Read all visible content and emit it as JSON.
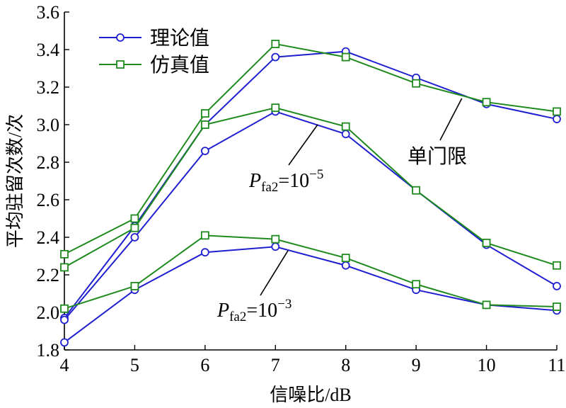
{
  "chart_data": {
    "type": "line",
    "xlabel": "信噪比/dB",
    "ylabel": "平均驻留次数/次",
    "xlim": [
      4,
      11
    ],
    "ylim": [
      1.8,
      3.6
    ],
    "x_ticks": [
      "4",
      "5",
      "6",
      "7",
      "8",
      "9",
      "10",
      "11"
    ],
    "y_ticks": [
      "1.8",
      "2.0",
      "2.2",
      "2.4",
      "2.6",
      "2.8",
      "3.0",
      "3.2",
      "3.4",
      "3.6"
    ],
    "x": [
      4,
      5,
      6,
      7,
      8,
      9,
      10,
      11
    ],
    "grid": false,
    "legend_position": "top-left",
    "legend": [
      {
        "label": "理论值",
        "color": "#1f1fd0",
        "marker": "circle"
      },
      {
        "label": "仿真值",
        "color": "#1e8a1e",
        "marker": "square"
      }
    ],
    "series": [
      {
        "group": "单门限",
        "kind": "理论值",
        "color": "#1f1fd0",
        "marker": "circle",
        "values": [
          1.97,
          2.46,
          3.0,
          3.36,
          3.39,
          3.25,
          3.11,
          3.03
        ]
      },
      {
        "group": "单门限",
        "kind": "仿真值",
        "color": "#1e8a1e",
        "marker": "square",
        "values": [
          2.31,
          2.5,
          3.06,
          3.43,
          3.36,
          3.22,
          3.12,
          3.07
        ]
      },
      {
        "group": "Pfa2=10^-5",
        "kind": "理论值",
        "color": "#1f1fd0",
        "marker": "circle",
        "values": [
          1.96,
          2.4,
          2.86,
          3.07,
          2.95,
          2.65,
          2.36,
          2.14
        ]
      },
      {
        "group": "Pfa2=10^-5",
        "kind": "仿真值",
        "color": "#1e8a1e",
        "marker": "square",
        "values": [
          2.24,
          2.45,
          3.0,
          3.09,
          2.99,
          2.65,
          2.37,
          2.25
        ]
      },
      {
        "group": "Pfa2=10^-3",
        "kind": "理论值",
        "color": "#1f1fd0",
        "marker": "circle",
        "values": [
          1.84,
          2.12,
          2.32,
          2.35,
          2.25,
          2.12,
          2.04,
          2.01
        ]
      },
      {
        "group": "Pfa2=10^-3",
        "kind": "仿真值",
        "color": "#1e8a1e",
        "marker": "square",
        "values": [
          2.02,
          2.14,
          2.41,
          2.39,
          2.29,
          2.15,
          2.04,
          2.03
        ]
      }
    ],
    "annotations": [
      {
        "id": "single",
        "text": "单门限",
        "target": [
          9.65,
          3.14
        ]
      },
      {
        "id": "p5",
        "base": "P",
        "sub": "fa2",
        "rest": "=10",
        "sup": "−5",
        "target": [
          7.6,
          3.0
        ]
      },
      {
        "id": "p3",
        "base": "P",
        "sub": "fa2",
        "rest": "=10",
        "sup": "−3",
        "target": [
          7.18,
          2.33
        ]
      }
    ]
  }
}
